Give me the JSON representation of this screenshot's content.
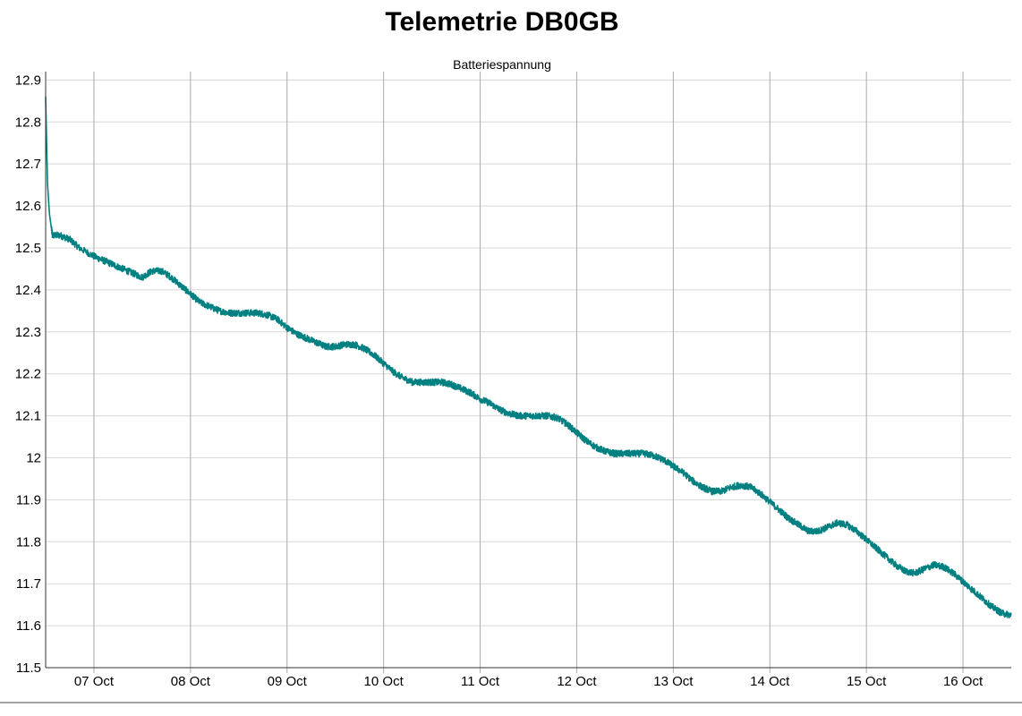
{
  "page": {
    "title": "Telemetrie DB0GB"
  },
  "chart_data": {
    "type": "line",
    "title": "Telemetrie DB0GB",
    "subtitle": "Batteriespannung",
    "xlabel": "",
    "ylabel": "",
    "xlim": [
      6.5,
      16.5
    ],
    "ylim": [
      11.5,
      12.92
    ],
    "x_ticks": [
      7,
      8,
      9,
      10,
      11,
      12,
      13,
      14,
      15,
      16
    ],
    "x_tick_labels": [
      "07 Oct",
      "08 Oct",
      "09 Oct",
      "10 Oct",
      "11 Oct",
      "12 Oct",
      "13 Oct",
      "14 Oct",
      "15 Oct",
      "16 Oct"
    ],
    "y_ticks": [
      11.5,
      11.6,
      11.7,
      11.8,
      11.9,
      12.0,
      12.1,
      12.2,
      12.3,
      12.4,
      12.5,
      12.6,
      12.7,
      12.8,
      12.9
    ],
    "y_tick_labels": [
      "11.5",
      "11.6",
      "11.7",
      "11.8",
      "11.9",
      "12",
      "12.1",
      "12.2",
      "12.3",
      "12.4",
      "12.5",
      "12.6",
      "12.7",
      "12.8",
      "12.9"
    ],
    "grid": true,
    "legend": "none",
    "line_color": "#008080",
    "series": [
      {
        "x": [
          6.5,
          6.51,
          6.52,
          6.54,
          6.57,
          6.65,
          6.75,
          6.85,
          7.0,
          7.1,
          7.2,
          7.3,
          7.4,
          7.5,
          7.6,
          7.7,
          7.8,
          7.9,
          8.0,
          8.1,
          8.2,
          8.3,
          8.4,
          8.5,
          8.6,
          8.7,
          8.8,
          8.9,
          9.0,
          9.1,
          9.2,
          9.3,
          9.4,
          9.5,
          9.6,
          9.7,
          9.8,
          9.9,
          10.0,
          10.1,
          10.2,
          10.3,
          10.4,
          10.5,
          10.6,
          10.7,
          10.8,
          10.9,
          11.0,
          11.1,
          11.2,
          11.3,
          11.4,
          11.5,
          11.6,
          11.7,
          11.8,
          11.9,
          12.0,
          12.1,
          12.2,
          12.3,
          12.4,
          12.5,
          12.6,
          12.7,
          12.8,
          12.9,
          13.0,
          13.1,
          13.2,
          13.3,
          13.4,
          13.5,
          13.6,
          13.7,
          13.8,
          13.9,
          14.0,
          14.1,
          14.2,
          14.3,
          14.4,
          14.5,
          14.6,
          14.7,
          14.8,
          14.9,
          15.0,
          15.1,
          15.2,
          15.3,
          15.4,
          15.5,
          15.6,
          15.7,
          15.8,
          15.9,
          16.0,
          16.1,
          16.2,
          16.3,
          16.4,
          16.5
        ],
        "y": [
          12.86,
          12.75,
          12.65,
          12.58,
          12.53,
          12.53,
          12.52,
          12.5,
          12.48,
          12.47,
          12.46,
          12.45,
          12.44,
          12.43,
          12.445,
          12.445,
          12.43,
          12.41,
          12.39,
          12.37,
          12.36,
          12.35,
          12.345,
          12.345,
          12.345,
          12.345,
          12.34,
          12.33,
          12.31,
          12.295,
          12.285,
          12.275,
          12.265,
          12.265,
          12.27,
          12.27,
          12.26,
          12.245,
          12.225,
          12.205,
          12.19,
          12.18,
          12.18,
          12.18,
          12.18,
          12.175,
          12.165,
          12.155,
          12.14,
          12.13,
          12.115,
          12.105,
          12.1,
          12.1,
          12.1,
          12.1,
          12.095,
          12.08,
          12.06,
          12.04,
          12.025,
          12.015,
          12.01,
          12.01,
          12.01,
          12.01,
          12.005,
          11.995,
          11.98,
          11.965,
          11.945,
          11.93,
          11.92,
          11.92,
          11.93,
          11.935,
          11.93,
          11.915,
          11.895,
          11.875,
          11.855,
          11.84,
          11.825,
          11.825,
          11.835,
          11.845,
          11.84,
          11.825,
          11.805,
          11.785,
          11.765,
          11.745,
          11.73,
          11.725,
          11.735,
          11.745,
          11.74,
          11.725,
          11.705,
          11.685,
          11.665,
          11.645,
          11.63,
          11.625
        ]
      }
    ]
  }
}
